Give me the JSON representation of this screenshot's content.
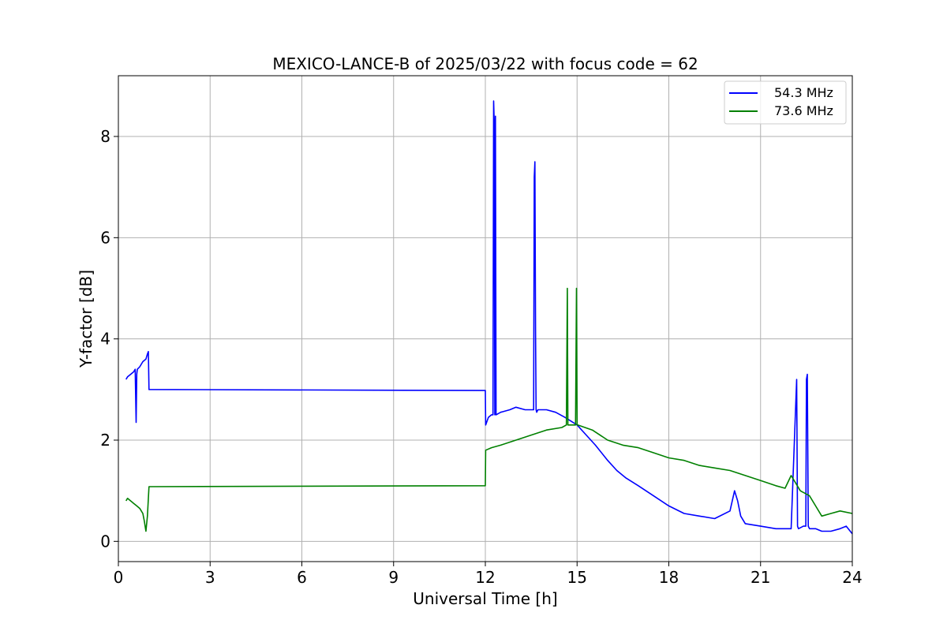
{
  "chart_data": {
    "type": "line",
    "title": "MEXICO-LANCE-B of 2025/03/22 with focus code = 62",
    "xlabel": "Universal Time [h]",
    "ylabel": "Y-factor [dB]",
    "xlim": [
      0,
      24
    ],
    "ylim": [
      -0.4,
      9.2
    ],
    "xticks": [
      0,
      3,
      6,
      9,
      12,
      15,
      18,
      21,
      24
    ],
    "xtick_labels": [
      "0",
      "3",
      "6",
      "9",
      "12",
      "15",
      "18",
      "21",
      "24"
    ],
    "yticks": [
      0,
      2,
      4,
      6,
      8
    ],
    "ytick_labels": [
      "0",
      "2",
      "4",
      "6",
      "8"
    ],
    "grid": true,
    "legend_position": "top-right",
    "series": [
      {
        "name": "54.3 MHz",
        "color": "#0000ff",
        "x": [
          0.25,
          0.3,
          0.4,
          0.5,
          0.55,
          0.58,
          0.6,
          0.62,
          0.7,
          0.8,
          0.9,
          0.95,
          0.98,
          1.0,
          12.0,
          12.01,
          12.1,
          12.2,
          12.25,
          12.27,
          12.29,
          12.31,
          12.33,
          12.35,
          12.5,
          12.8,
          13.0,
          13.3,
          13.5,
          13.58,
          13.6,
          13.62,
          13.64,
          13.66,
          13.68,
          13.72,
          14.0,
          14.3,
          14.6,
          15.0,
          15.3,
          15.6,
          16.0,
          16.3,
          16.6,
          17.0,
          17.5,
          18.0,
          18.5,
          19.0,
          19.5,
          20.0,
          20.15,
          20.25,
          20.35,
          20.5,
          21.0,
          21.5,
          22.0,
          22.18,
          22.21,
          22.24,
          22.4,
          22.48,
          22.5,
          22.53,
          22.56,
          22.6,
          22.8,
          23.0,
          23.3,
          23.6,
          23.8,
          24.0
        ],
        "y": [
          3.2,
          3.25,
          3.3,
          3.35,
          3.4,
          2.35,
          3.3,
          3.4,
          3.45,
          3.55,
          3.6,
          3.7,
          3.75,
          3.0,
          2.98,
          2.3,
          2.45,
          2.5,
          2.5,
          8.7,
          8.3,
          2.5,
          8.4,
          2.5,
          2.55,
          2.6,
          2.65,
          2.6,
          2.6,
          2.6,
          7.2,
          7.5,
          4.2,
          2.6,
          2.55,
          2.6,
          2.6,
          2.55,
          2.45,
          2.3,
          2.1,
          1.9,
          1.6,
          1.4,
          1.25,
          1.1,
          0.9,
          0.7,
          0.55,
          0.5,
          0.45,
          0.6,
          1.0,
          0.8,
          0.5,
          0.35,
          0.3,
          0.25,
          0.25,
          3.2,
          0.3,
          0.25,
          0.3,
          0.3,
          3.2,
          3.3,
          0.3,
          0.25,
          0.25,
          0.2,
          0.2,
          0.25,
          0.3,
          0.15
        ]
      },
      {
        "name": "73.6 MHz",
        "color": "#008000",
        "x": [
          0.25,
          0.3,
          0.4,
          0.5,
          0.6,
          0.7,
          0.8,
          0.85,
          0.9,
          0.95,
          1.0,
          12.0,
          12.01,
          12.2,
          12.5,
          13.0,
          13.5,
          14.0,
          14.5,
          14.65,
          14.68,
          14.7,
          14.72,
          14.95,
          14.98,
          15.0,
          15.02,
          15.5,
          16.0,
          16.5,
          17.0,
          17.5,
          18.0,
          18.5,
          19.0,
          19.5,
          20.0,
          20.5,
          21.0,
          21.5,
          21.8,
          22.0,
          22.3,
          22.6,
          22.8,
          23.0,
          23.3,
          23.6,
          24.0
        ],
        "y": [
          0.8,
          0.85,
          0.8,
          0.75,
          0.7,
          0.65,
          0.55,
          0.4,
          0.2,
          0.5,
          1.08,
          1.1,
          1.8,
          1.85,
          1.9,
          2.0,
          2.1,
          2.2,
          2.25,
          2.3,
          5.0,
          2.3,
          2.3,
          2.3,
          5.0,
          2.3,
          2.3,
          2.2,
          2.0,
          1.9,
          1.85,
          1.75,
          1.65,
          1.6,
          1.5,
          1.45,
          1.4,
          1.3,
          1.2,
          1.1,
          1.05,
          1.3,
          1.0,
          0.9,
          0.7,
          0.5,
          0.55,
          0.6,
          0.55
        ]
      }
    ]
  }
}
